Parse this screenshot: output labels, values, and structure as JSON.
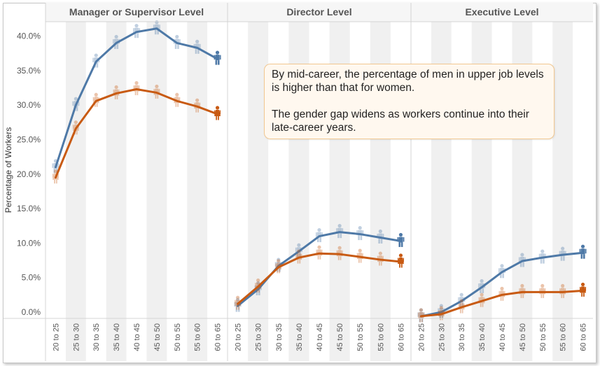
{
  "chart_data": {
    "type": "line",
    "ylabel": "Percentage of Workers",
    "ylim": [
      0,
      42
    ],
    "y_ticks": [
      "0.0%",
      "5.0%",
      "10.0%",
      "15.0%",
      "20.0%",
      "25.0%",
      "30.0%",
      "35.0%",
      "40.0%"
    ],
    "categories": [
      "20 to 25",
      "25 to 30",
      "30 to 35",
      "35 to 40",
      "40 to 45",
      "45 to 50",
      "50 to 55",
      "55 to 60",
      "60 to 65"
    ],
    "marker": "person-icon",
    "colors": {
      "men": "#4e79a7",
      "women": "#c85a12",
      "band": "#f0f0f0",
      "grid": "#d4d4d4"
    },
    "panels": [
      {
        "title": "Manager or Supervisor Level",
        "series": [
          {
            "values": [
              21.0,
              30.0,
              36.3,
              39.0,
              40.6,
              41.1,
              39.0,
              38.3,
              36.7
            ]
          },
          {
            "values": [
              19.5,
              26.6,
              30.6,
              31.7,
              32.3,
              31.8,
              30.6,
              29.8,
              28.7
            ]
          }
        ]
      },
      {
        "title": "Director Level",
        "series": [
          {
            "values": [
              0.9,
              3.3,
              6.7,
              8.8,
              11.0,
              11.6,
              11.3,
              10.8,
              10.3
            ]
          },
          {
            "values": [
              1.2,
              3.7,
              6.5,
              7.9,
              8.5,
              8.4,
              8.0,
              7.6,
              7.3
            ]
          }
        ]
      },
      {
        "title": "Executive Level",
        "series": [
          {
            "values": [
              -0.6,
              0.0,
              1.6,
              3.6,
              5.8,
              7.4,
              7.9,
              8.3,
              8.6
            ]
          },
          {
            "values": [
              -0.6,
              -0.3,
              0.7,
              1.6,
              2.5,
              2.9,
              2.9,
              2.9,
              3.1
            ]
          }
        ]
      }
    ]
  },
  "annotation": {
    "paragraph1": "By mid-career, the percentage of men in upper job levels is higher than that for women.",
    "paragraph2": "The gender gap widens as workers continue into their late-career years."
  }
}
